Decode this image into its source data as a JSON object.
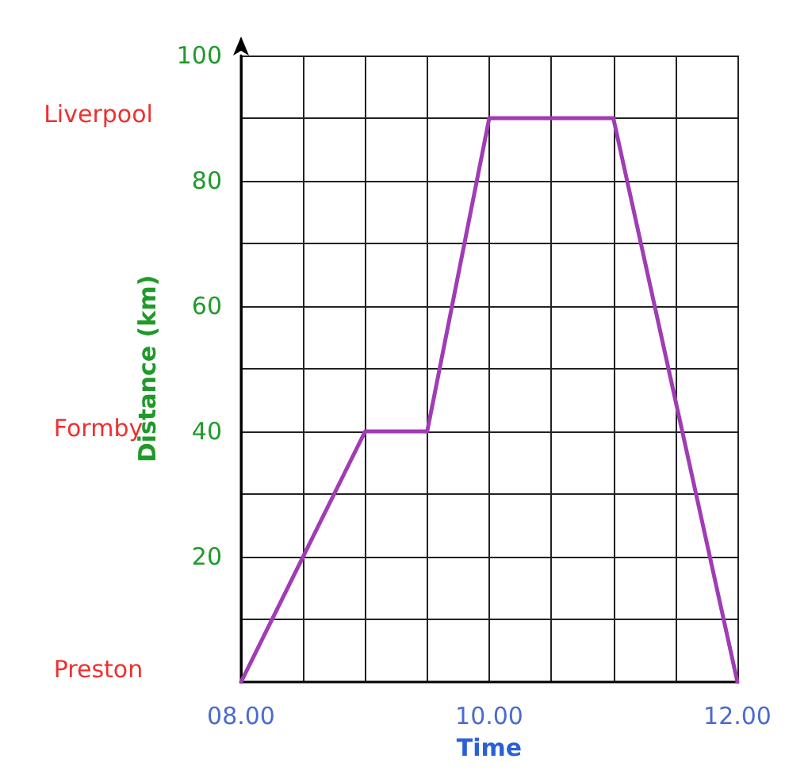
{
  "chart_data": {
    "type": "line",
    "xlabel": "Time",
    "ylabel": "Distance (km)",
    "x": [
      8,
      9,
      9.5,
      10,
      11,
      12
    ],
    "series": [
      {
        "color": "#a03cb4",
        "values": [
          0,
          40,
          40,
          90,
          90,
          0
        ]
      }
    ],
    "xlim": [
      8,
      12
    ],
    "xticks": [
      {
        "value": 8,
        "label": "08.00"
      },
      {
        "value": 8.5,
        "label": null
      },
      {
        "value": 9,
        "label": null
      },
      {
        "value": 9.5,
        "label": null
      },
      {
        "value": 10,
        "label": "10.00"
      },
      {
        "value": 10.5,
        "label": null
      },
      {
        "value": 11,
        "label": null
      },
      {
        "value": 11.5,
        "label": null
      },
      {
        "value": 12,
        "label": "12.00"
      }
    ],
    "ylim": [
      0,
      100
    ],
    "yticks": [
      {
        "value": 10,
        "label": null
      },
      20,
      {
        "value": 30,
        "label": null
      },
      40,
      {
        "value": 50,
        "label": null
      },
      60,
      {
        "value": 70,
        "label": null
      },
      80,
      {
        "value": 90,
        "label": null
      },
      100
    ],
    "annotations": [
      "Liverpool",
      "Formby",
      "Preston"
    ],
    "grid": true,
    "marker": "none",
    "line_style": "solid"
  }
}
